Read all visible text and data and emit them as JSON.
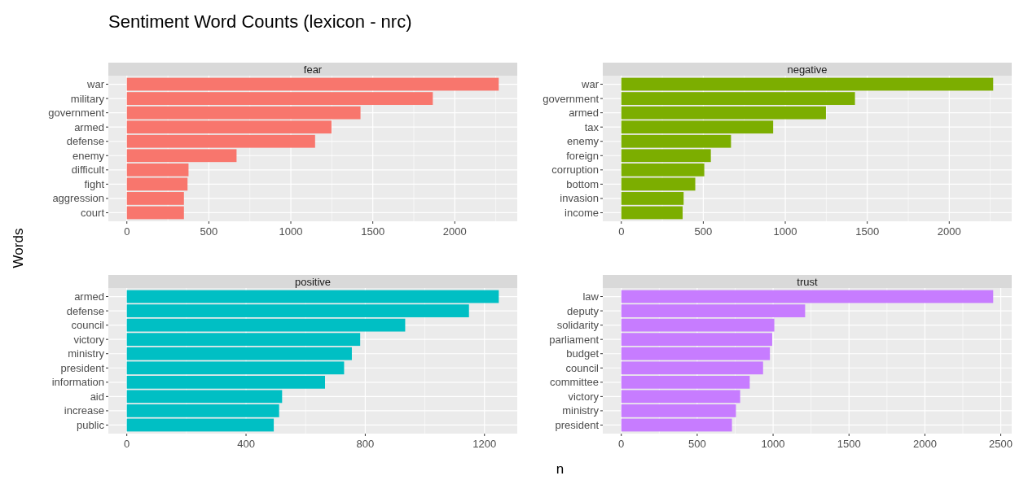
{
  "chart_data": [
    {
      "type": "bar",
      "orientation": "horizontal",
      "title": "fear",
      "annotations": [
        "Sentiment Word Counts (lexicon - nrc)"
      ],
      "ylabel": "Words",
      "categories": [
        "war",
        "military",
        "government",
        "armed",
        "defense",
        "enemy",
        "difficult",
        "fight",
        "aggression",
        "court"
      ],
      "values": [
        2268,
        1866,
        1425,
        1248,
        1148,
        669,
        376,
        370,
        348,
        348
      ],
      "color": "#f8766d",
      "xlim": [
        -113,
        2381
      ],
      "xticks": [
        0,
        500,
        1000,
        1500,
        2000
      ],
      "grid": true
    },
    {
      "type": "bar",
      "orientation": "horizontal",
      "title": "negative",
      "categories": [
        "war",
        "government",
        "armed",
        "tax",
        "enemy",
        "foreign",
        "corruption",
        "bottom",
        "invasion",
        "income"
      ],
      "values": [
        2268,
        1425,
        1248,
        926,
        669,
        546,
        506,
        451,
        380,
        374
      ],
      "color": "#7cae00",
      "xlim": [
        -113,
        2381
      ],
      "xticks": [
        0,
        500,
        1000,
        1500,
        2000
      ],
      "grid": true
    },
    {
      "type": "bar",
      "orientation": "horizontal",
      "title": "positive",
      "xlabel": "n",
      "categories": [
        "armed",
        "defense",
        "council",
        "victory",
        "ministry",
        "president",
        "information",
        "aid",
        "increase",
        "public"
      ],
      "values": [
        1248,
        1148,
        934,
        783,
        755,
        729,
        665,
        521,
        511,
        493
      ],
      "color": "#00bfc4",
      "xlim": [
        -62,
        1310
      ],
      "xticks": [
        0,
        400,
        800,
        1200
      ],
      "grid": true
    },
    {
      "type": "bar",
      "orientation": "horizontal",
      "title": "trust",
      "categories": [
        "law",
        "deputy",
        "solidarity",
        "parliament",
        "budget",
        "council",
        "committee",
        "victory",
        "ministry",
        "president"
      ],
      "values": [
        2450,
        1211,
        1008,
        994,
        979,
        934,
        846,
        783,
        755,
        729
      ],
      "color": "#c77cff",
      "xlim": [
        -122,
        2572
      ],
      "xticks": [
        0,
        500,
        1000,
        1500,
        2000,
        2500
      ],
      "grid": true
    }
  ]
}
